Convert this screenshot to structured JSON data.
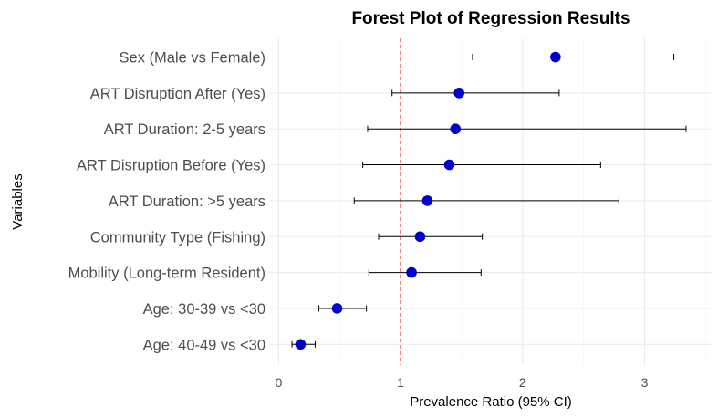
{
  "chart_data": {
    "type": "forest",
    "title": "Forest Plot of Regression Results",
    "xlabel": "Prevalence Ratio (95% CI)",
    "ylabel": "Variables",
    "xlim": [
      -0.07,
      3.55
    ],
    "x_ticks": [
      0,
      1,
      2,
      3
    ],
    "x_tick_labels": [
      "0",
      "1",
      "2",
      "3"
    ],
    "reference_line": 1,
    "point_color": "#0000CD",
    "reference_line_color": "#E41A1C",
    "grid": true,
    "rows": [
      {
        "label": "Sex (Male vs Female)",
        "estimate": 2.27,
        "lower": 1.59,
        "upper": 3.24
      },
      {
        "label": "ART Disruption After (Yes)",
        "estimate": 1.48,
        "lower": 0.93,
        "upper": 2.3
      },
      {
        "label": "ART Duration: 2-5 years",
        "estimate": 1.45,
        "lower": 0.73,
        "upper": 3.34
      },
      {
        "label": "ART Disruption Before (Yes)",
        "estimate": 1.4,
        "lower": 0.69,
        "upper": 2.64
      },
      {
        "label": "ART Duration: >5 years",
        "estimate": 1.22,
        "lower": 0.62,
        "upper": 2.79
      },
      {
        "label": "Community Type (Fishing)",
        "estimate": 1.16,
        "lower": 0.82,
        "upper": 1.67
      },
      {
        "label": "Mobility (Long-term Resident)",
        "estimate": 1.09,
        "lower": 0.74,
        "upper": 1.66
      },
      {
        "label": "Age: 30-39 vs <30",
        "estimate": 0.48,
        "lower": 0.33,
        "upper": 0.72
      },
      {
        "label": "Age: 40-49 vs <30",
        "estimate": 0.18,
        "lower": 0.11,
        "upper": 0.3
      }
    ]
  }
}
